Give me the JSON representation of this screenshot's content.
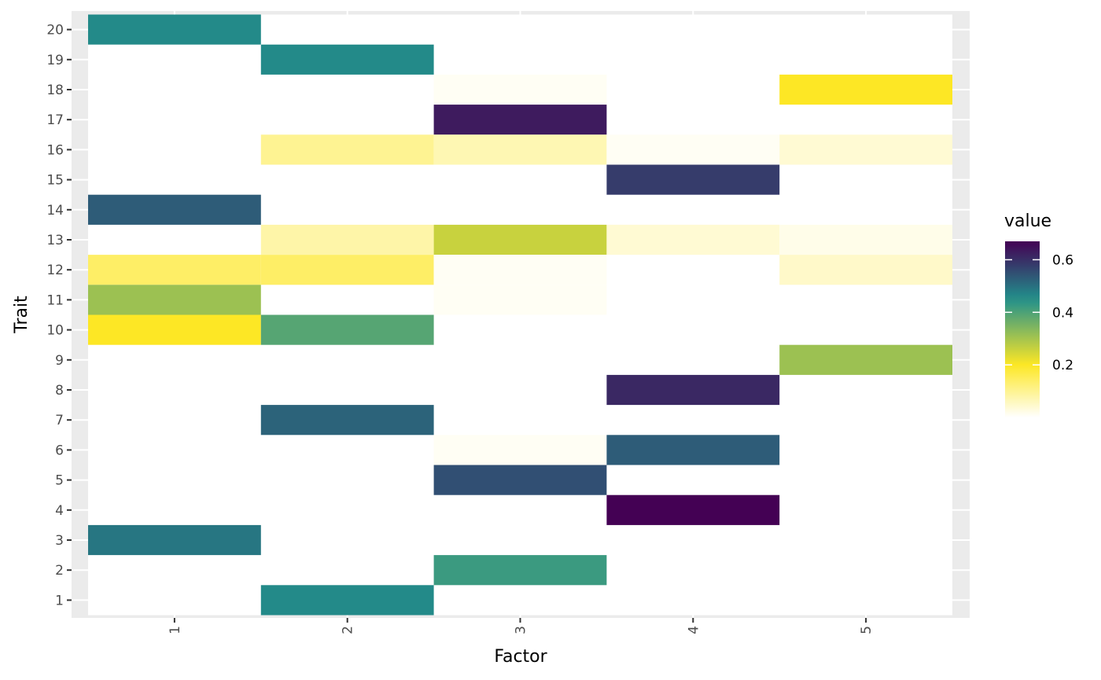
{
  "chart_data": {
    "type": "heatmap",
    "xlabel": "Factor",
    "ylabel": "Trait",
    "x_categories": [
      "1",
      "2",
      "3",
      "4",
      "5"
    ],
    "y_categories": [
      "1",
      "2",
      "3",
      "4",
      "5",
      "6",
      "7",
      "8",
      "9",
      "10",
      "11",
      "12",
      "13",
      "14",
      "15",
      "16",
      "17",
      "18",
      "19",
      "20"
    ],
    "legend": {
      "title": "value",
      "placement": "right",
      "min": 0.0,
      "max": 0.67,
      "ticks": [
        {
          "label": "0.2",
          "value": 0.2
        },
        {
          "label": "0.4",
          "value": 0.4
        },
        {
          "label": "0.6",
          "value": 0.6
        }
      ]
    },
    "colors": {
      "panel_background": "#ebebeb",
      "grid": "#ffffff",
      "scale": [
        "#ffffff",
        "#fde725",
        "#21908c",
        "#440154"
      ]
    },
    "cells": [
      {
        "factor": 1,
        "trait": 20,
        "value": 0.46
      },
      {
        "factor": 2,
        "trait": 19,
        "value": 0.46
      },
      {
        "factor": 3,
        "trait": 18,
        "value": 0.01
      },
      {
        "factor": 5,
        "trait": 18,
        "value": 0.2
      },
      {
        "factor": 3,
        "trait": 17,
        "value": 0.63
      },
      {
        "factor": 2,
        "trait": 16,
        "value": 0.1
      },
      {
        "factor": 3,
        "trait": 16,
        "value": 0.07
      },
      {
        "factor": 4,
        "trait": 16,
        "value": 0.01
      },
      {
        "factor": 5,
        "trait": 16,
        "value": 0.04
      },
      {
        "factor": 4,
        "trait": 15,
        "value": 0.58
      },
      {
        "factor": 1,
        "trait": 14,
        "value": 0.53
      },
      {
        "factor": 2,
        "trait": 13,
        "value": 0.08
      },
      {
        "factor": 3,
        "trait": 13,
        "value": 0.26
      },
      {
        "factor": 4,
        "trait": 13,
        "value": 0.04
      },
      {
        "factor": 5,
        "trait": 13,
        "value": 0.02
      },
      {
        "factor": 1,
        "trait": 12,
        "value": 0.14
      },
      {
        "factor": 2,
        "trait": 12,
        "value": 0.14
      },
      {
        "factor": 3,
        "trait": 12,
        "value": 0.01
      },
      {
        "factor": 5,
        "trait": 12,
        "value": 0.05
      },
      {
        "factor": 1,
        "trait": 11,
        "value": 0.31
      },
      {
        "factor": 3,
        "trait": 11,
        "value": 0.01
      },
      {
        "factor": 1,
        "trait": 10,
        "value": 0.2
      },
      {
        "factor": 2,
        "trait": 10,
        "value": 0.39
      },
      {
        "factor": 5,
        "trait": 9,
        "value": 0.31
      },
      {
        "factor": 4,
        "trait": 8,
        "value": 0.61
      },
      {
        "factor": 2,
        "trait": 7,
        "value": 0.52
      },
      {
        "factor": 3,
        "trait": 6,
        "value": 0.01
      },
      {
        "factor": 4,
        "trait": 6,
        "value": 0.53
      },
      {
        "factor": 3,
        "trait": 5,
        "value": 0.55
      },
      {
        "factor": 4,
        "trait": 4,
        "value": 0.67
      },
      {
        "factor": 1,
        "trait": 3,
        "value": 0.49
      },
      {
        "factor": 3,
        "trait": 2,
        "value": 0.42
      },
      {
        "factor": 2,
        "trait": 1,
        "value": 0.46
      }
    ]
  }
}
